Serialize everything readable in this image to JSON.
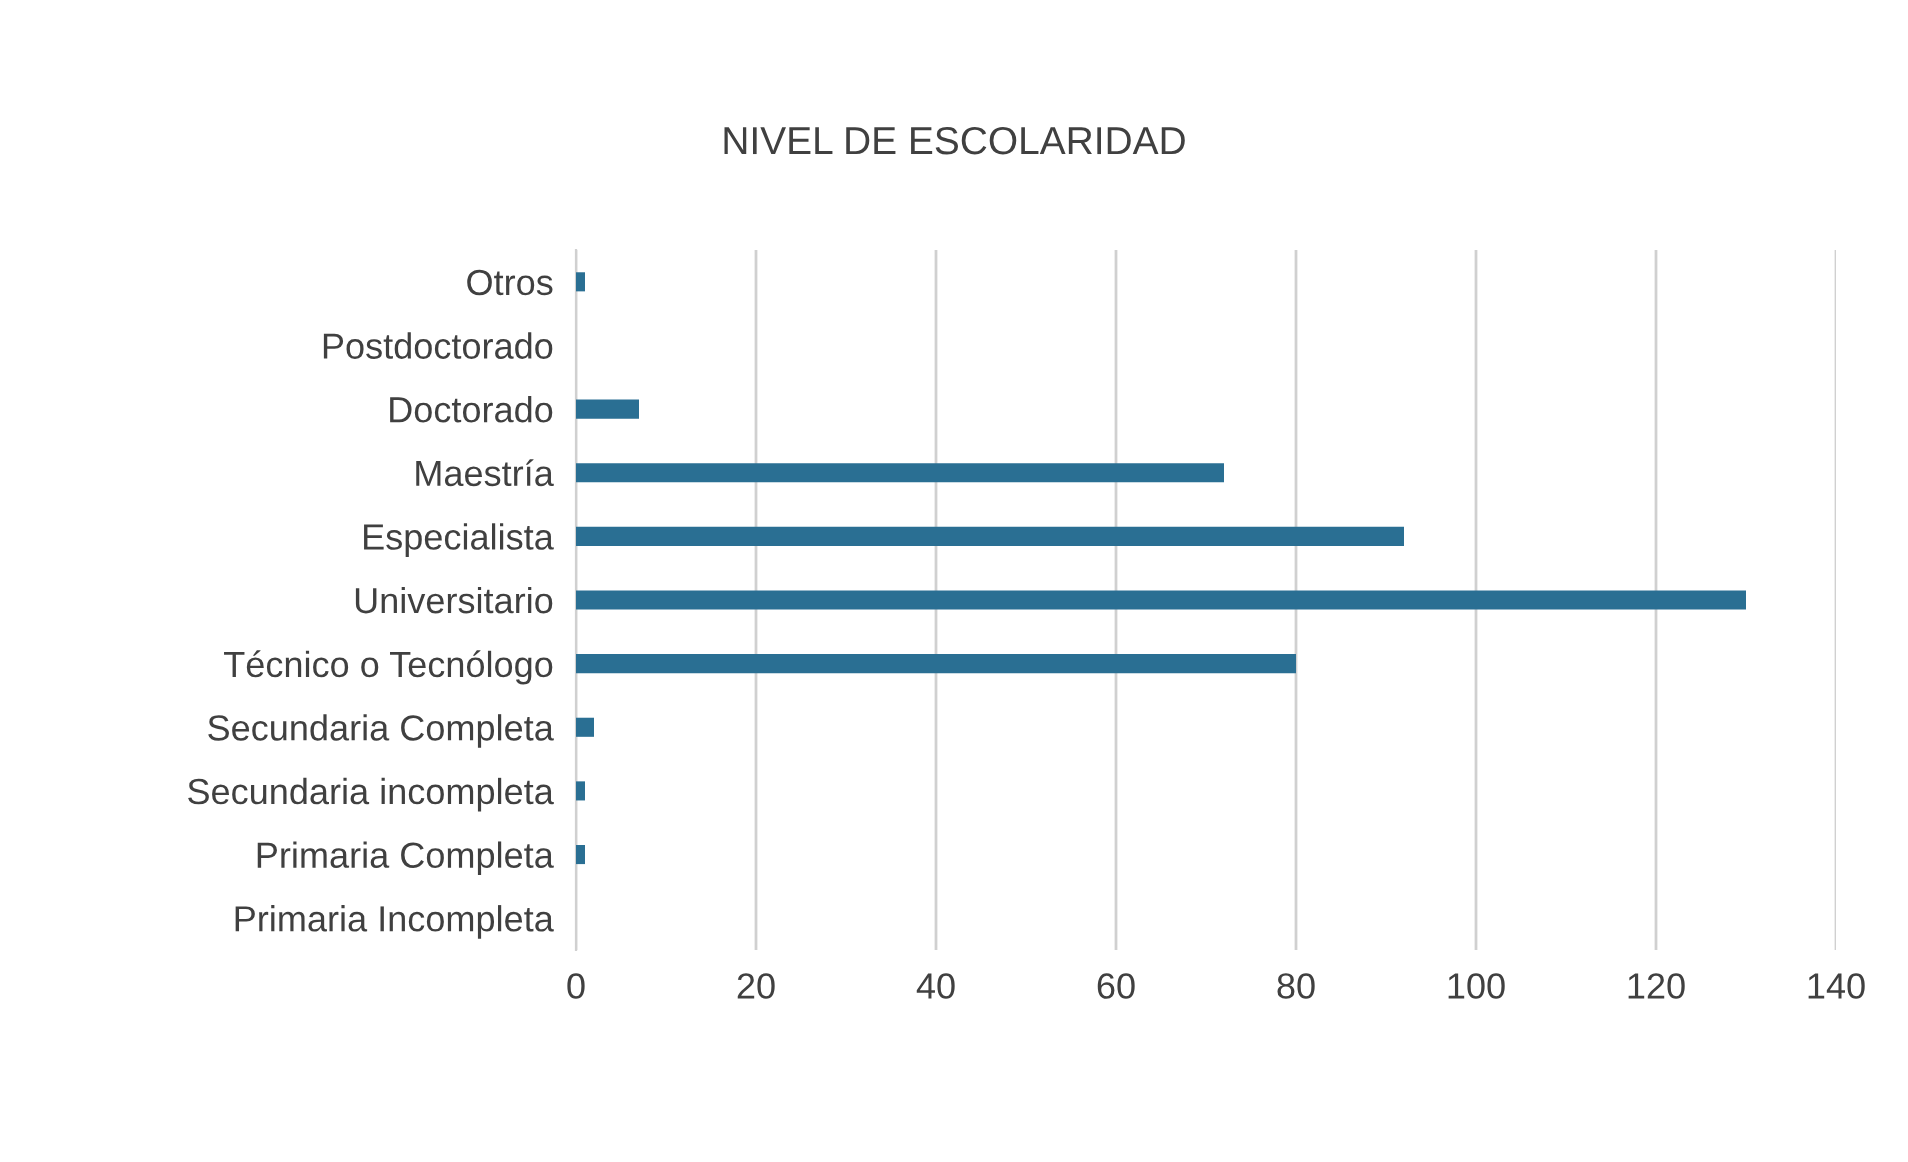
{
  "chart_data": {
    "type": "bar",
    "orientation": "horizontal",
    "title": "NIVEL DE ESCOLARIDAD",
    "categories": [
      "Otros",
      "Postdoctorado",
      "Doctorado",
      "Maestría",
      "Especialista",
      "Universitario",
      "Técnico o Tecnólogo",
      "Secundaria Completa",
      "Secundaria incompleta",
      "Primaria Completa",
      "Primaria Incompleta"
    ],
    "values": [
      1,
      0,
      7,
      72,
      92,
      130,
      80,
      2,
      1,
      1,
      0
    ],
    "color": "#2a6f93",
    "xlim": [
      0,
      140
    ],
    "xticks": [
      0,
      20,
      40,
      60,
      80,
      100,
      120,
      140
    ],
    "grid": "x",
    "legend": false
  }
}
